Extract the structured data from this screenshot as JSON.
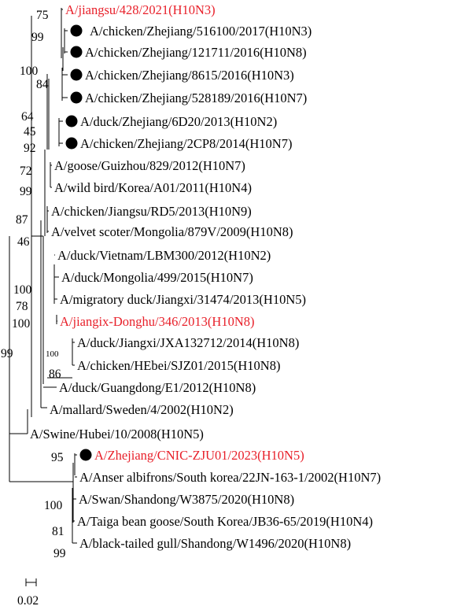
{
  "colors": {
    "highlight": "#e8202a",
    "normal": "#000000"
  },
  "taxa": [
    {
      "label": "A/jiangsu/428/2021(H10N3)",
      "highlight": true,
      "marker": false
    },
    {
      "label": "A/chicken/Zhejiang/516100/2017(H10N3)",
      "highlight": false,
      "marker": true
    },
    {
      "label": "A/chicken/Zhejiang/121711/2016(H10N8)",
      "highlight": false,
      "marker": true
    },
    {
      "label": "A/chicken/Zhejiang/8615/2016(H10N3)",
      "highlight": false,
      "marker": true
    },
    {
      "label": "A/chicken/Zhejiang/528189/2016(H10N7)",
      "highlight": false,
      "marker": true
    },
    {
      "label": "A/duck/Zhejiang/6D20/2013(H10N2)",
      "highlight": false,
      "marker": true
    },
    {
      "label": "A/chicken/Zhejiang/2CP8/2014(H10N7)",
      "highlight": false,
      "marker": true
    },
    {
      "label": "A/goose/Guizhou/829/2012(H10N7)",
      "highlight": false,
      "marker": false
    },
    {
      "label": "A/wild bird/Korea/A01/2011(H10N4)",
      "highlight": false,
      "marker": false
    },
    {
      "label": "A/chicken/Jiangsu/RD5/2013(H10N9)",
      "highlight": false,
      "marker": false
    },
    {
      "label": "A/velvet scoter/Mongolia/879V/2009(H10N8)",
      "highlight": false,
      "marker": false
    },
    {
      "label": "A/duck/Vietnam/LBM300/2012(H10N2)",
      "highlight": false,
      "marker": false
    },
    {
      "label": "A/duck/Mongolia/499/2015(H10N7)",
      "highlight": false,
      "marker": false
    },
    {
      "label": "A/migratory duck/Jiangxi/31474/2013(H10N5)",
      "highlight": false,
      "marker": false
    },
    {
      "label": "A/jiangix-Donghu/346/2013(H10N8)",
      "highlight": true,
      "marker": false
    },
    {
      "label": "A/duck/Jiangxi/JXA132712/2014(H10N8)",
      "highlight": false,
      "marker": false
    },
    {
      "label": "A/chicken/HEbei/SJZ01/2015(H10N8)",
      "highlight": false,
      "marker": false
    },
    {
      "label": "A/duck/Guangdong/E1/2012(H10N8)",
      "highlight": false,
      "marker": false
    },
    {
      "label": "A/mallard/Sweden/4/2002(H10N2)",
      "highlight": false,
      "marker": false
    },
    {
      "label": "A/Swine/Hubei/10/2008(H10N5)",
      "highlight": false,
      "marker": false
    },
    {
      "label": "A/Zhejiang/CNIC-ZJU01/2023(H10N5)",
      "highlight": true,
      "marker": true
    },
    {
      "label": "A/Anser albifrons/South korea/22JN-163-1/2002(H10N7)",
      "highlight": false,
      "marker": false
    },
    {
      "label": "A/Swan/Shandong/W3875/2020(H10N8)",
      "highlight": false,
      "marker": false
    },
    {
      "label": "A/Taiga bean goose/South Korea/JB36-65/2019(H10N4)",
      "highlight": false,
      "marker": false
    },
    {
      "label": "A/black-tailed gull/Shandong/W1496/2020(H10N8)",
      "highlight": false,
      "marker": false
    }
  ],
  "bootstrap_values": [
    "75",
    "99",
    "100",
    "84",
    "64",
    "45",
    "92",
    "72",
    "99",
    "87",
    "46",
    "100",
    "78",
    "100",
    "100",
    "86",
    "99",
    "95",
    "100",
    "81",
    "99"
  ],
  "scale_bar": {
    "label": "0.02"
  }
}
